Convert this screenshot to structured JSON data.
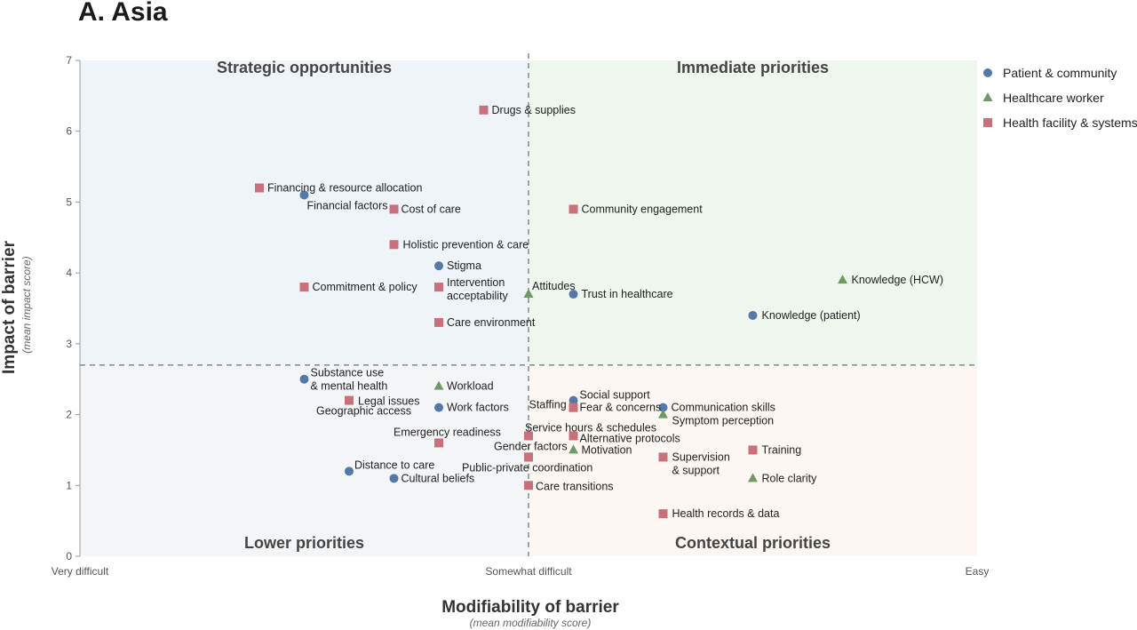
{
  "chart_data": {
    "type": "scatter",
    "title": "A. Asia",
    "xlabel": "Modifiability of barrier",
    "xlabel_sub": "(mean modifiability score)",
    "ylabel": "Impact of barrier",
    "ylabel_sub": "(mean impact score)",
    "xlim": [
      1,
      5
    ],
    "ylim": [
      0,
      7
    ],
    "x_ticks": [
      {
        "value": 1,
        "label": "Very difficult"
      },
      {
        "value": 3,
        "label": "Somewhat difficult"
      },
      {
        "value": 5,
        "label": "Easy"
      }
    ],
    "y_ticks": [
      0,
      1,
      2,
      3,
      4,
      5,
      6,
      7
    ],
    "thresholds": {
      "x": 3,
      "y": 2.7
    },
    "quadrants": {
      "top_left": "Strategic opportunities",
      "top_right": "Immediate priorities",
      "bottom_left": "Lower priorities",
      "bottom_right": "Contextual priorities"
    },
    "quadrant_colors": {
      "top_left": "#eff4f9",
      "top_right": "#eef6ee",
      "bottom_left": "#f4f5f7",
      "bottom_right": "#fcf7f2"
    },
    "legend_position": "top-right",
    "series": [
      {
        "name": "Patient & community",
        "marker": "circle",
        "color": "#5578a8",
        "points": [
          {
            "label": "Financial factors",
            "x": 2.0,
            "y": 5.1
          },
          {
            "label": "Stigma",
            "x": 2.6,
            "y": 4.1
          },
          {
            "label": "Trust in healthcare",
            "x": 3.2,
            "y": 3.7
          },
          {
            "label": "Knowledge (patient)",
            "x": 4.0,
            "y": 3.4
          },
          {
            "label": "Substance use\n& mental health",
            "x": 2.0,
            "y": 2.5
          },
          {
            "label": "Geographic access",
            "x": 2.2,
            "y": 2.2
          },
          {
            "label": "Work factors",
            "x": 2.6,
            "y": 2.1
          },
          {
            "label": "Social support",
            "x": 3.2,
            "y": 2.2
          },
          {
            "label": "Communication skills",
            "x": 3.6,
            "y": 2.1
          },
          {
            "label": "Distance to care",
            "x": 2.2,
            "y": 1.2
          },
          {
            "label": "Cultural beliefs",
            "x": 2.4,
            "y": 1.1
          }
        ]
      },
      {
        "name": "Healthcare worker",
        "marker": "triangle",
        "color": "#6e9a66",
        "points": [
          {
            "label": "Knowledge (HCW)",
            "x": 4.4,
            "y": 3.9
          },
          {
            "label": "Attitudes",
            "x": 3.0,
            "y": 3.7
          },
          {
            "label": "Workload",
            "x": 2.6,
            "y": 2.4
          },
          {
            "label": "Symptom perception",
            "x": 3.6,
            "y": 2.0
          },
          {
            "label": "Motivation",
            "x": 3.2,
            "y": 1.5
          },
          {
            "label": "Role clarity",
            "x": 4.0,
            "y": 1.1
          }
        ]
      },
      {
        "name": "Health facility & systems",
        "marker": "square",
        "color": "#c9707a",
        "points": [
          {
            "label": "Drugs & supplies",
            "x": 2.8,
            "y": 6.3
          },
          {
            "label": "Financing & resource allocation",
            "x": 1.8,
            "y": 5.2
          },
          {
            "label": "Cost of care",
            "x": 2.4,
            "y": 4.9
          },
          {
            "label": "Community engagement",
            "x": 3.2,
            "y": 4.9
          },
          {
            "label": "Holistic prevention & care",
            "x": 2.4,
            "y": 4.4
          },
          {
            "label": "Commitment & policy",
            "x": 2.0,
            "y": 3.8
          },
          {
            "label": "Intervention\nacceptability",
            "x": 2.6,
            "y": 3.8
          },
          {
            "label": "Care environment",
            "x": 2.6,
            "y": 3.3
          },
          {
            "label": "Legal issues",
            "x": 2.2,
            "y": 2.2
          },
          {
            "label": "Staffing",
            "x": 3.2,
            "y": 2.1
          },
          {
            "label": "Fear & concerns",
            "x": 3.2,
            "y": 2.1
          },
          {
            "label": "Emergency readiness",
            "x": 2.6,
            "y": 1.6
          },
          {
            "label": "Service hours & schedules",
            "x": 3.0,
            "y": 1.7
          },
          {
            "label": "Alternative protocols",
            "x": 3.2,
            "y": 1.7
          },
          {
            "label": "Gender factors",
            "x": 3.0,
            "y": 1.4
          },
          {
            "label": "Public-private coordination",
            "x": 3.0,
            "y": 1.4
          },
          {
            "label": "Training",
            "x": 4.0,
            "y": 1.5
          },
          {
            "label": "Supervision\n& support",
            "x": 3.6,
            "y": 1.4
          },
          {
            "label": "Care transitions",
            "x": 3.0,
            "y": 1.0
          },
          {
            "label": "Health records & data",
            "x": 3.6,
            "y": 0.6
          }
        ]
      }
    ]
  }
}
